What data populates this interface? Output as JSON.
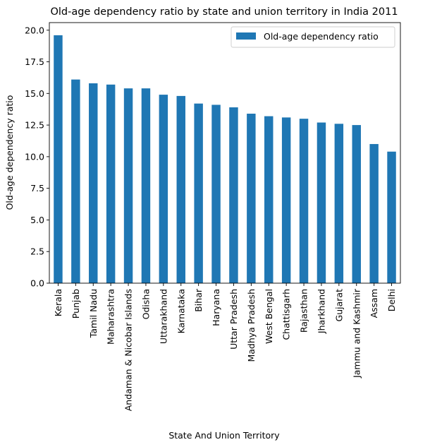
{
  "chart_data": {
    "type": "bar",
    "title": "Old-age dependency ratio by state and union territory in India 2011",
    "xlabel": "State And Union Territory",
    "ylabel": "Old-age dependency ratio",
    "ylim": [
      0,
      20.6
    ],
    "yticks": [
      "0.0",
      "2.5",
      "5.0",
      "7.5",
      "10.0",
      "12.5",
      "15.0",
      "17.5",
      "20.0"
    ],
    "grid": false,
    "legend_position": "top-right",
    "bar_color": "#1f77b4",
    "categories": [
      "Kerala",
      "Punjab",
      "Tamil Nadu",
      "Maharashtra",
      "Andaman & Nicobar Islands",
      "Odisha",
      "Uttarakhand",
      "Karnataka",
      "Bihar",
      "Haryana",
      "Uttar Pradesh",
      "Madhya Pradesh",
      "West Bengal",
      "Chattisgarh",
      "Rajasthan",
      "Jharkhand",
      "Gujarat",
      "Jammu and Kashmir",
      "Assam",
      "Delhi"
    ],
    "series": [
      {
        "name": "Old-age dependency ratio",
        "values": [
          19.6,
          16.1,
          15.8,
          15.7,
          15.4,
          15.4,
          14.9,
          14.8,
          14.2,
          14.1,
          13.9,
          13.4,
          13.2,
          13.1,
          13.0,
          12.7,
          12.6,
          12.5,
          11.0,
          10.4
        ]
      }
    ]
  }
}
